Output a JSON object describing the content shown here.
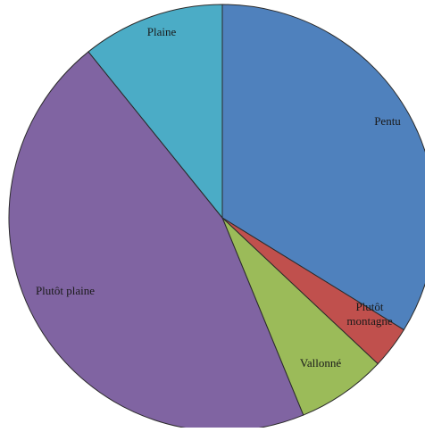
{
  "chart_data": {
    "type": "pie",
    "title": "",
    "start": "12 o'clock",
    "direction": "clockwise",
    "labels": [
      "Pentu",
      "Plutôt montagne",
      "Vallonné",
      "Plutôt plaine",
      "Plaine"
    ],
    "values": [
      33.8,
      3.2,
      6.8,
      45.4,
      10.8
    ],
    "colors": [
      "#4f81bd",
      "#c0504d",
      "#9bbb59",
      "#8064a2",
      "#4bacc6"
    ],
    "label_lines": [
      [
        "Pentu"
      ],
      [
        "Plutôt",
        "montagne"
      ],
      [
        "Vallonné"
      ],
      [
        "Plutôt plaine"
      ],
      [
        "Plaine"
      ]
    ],
    "legend": "none"
  }
}
